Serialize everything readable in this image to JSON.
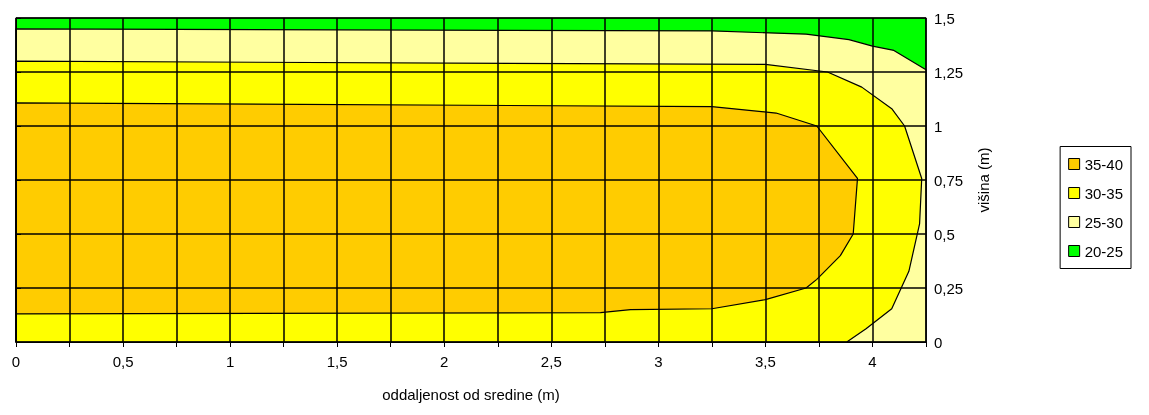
{
  "chart_data": {
    "type": "area",
    "xlabel": "oddaljenost od sredine (m)",
    "ylabel": "višina (m)",
    "xlim": [
      0,
      4.25
    ],
    "ylim": [
      0,
      1.5
    ],
    "xticks": [
      0,
      {
        "value": 0.25,
        "label": null
      },
      {
        "value": 0.5,
        "label": "0,5"
      },
      {
        "value": 0.75,
        "label": null
      },
      1,
      {
        "value": 1.25,
        "label": null
      },
      {
        "value": 1.5,
        "label": "1,5"
      },
      {
        "value": 1.75,
        "label": null
      },
      2,
      {
        "value": 2.25,
        "label": null
      },
      {
        "value": 2.5,
        "label": "2,5"
      },
      {
        "value": 2.75,
        "label": null
      },
      3,
      {
        "value": 3.25,
        "label": null
      },
      {
        "value": 3.5,
        "label": "3,5"
      },
      {
        "value": 3.75,
        "label": null
      },
      4,
      {
        "value": 4.25,
        "label": null
      }
    ],
    "yticks": [
      0,
      {
        "value": 0.25,
        "label": "0,25"
      },
      {
        "value": 0.5,
        "label": "0,5"
      },
      {
        "value": 0.75,
        "label": "0,75"
      },
      1,
      {
        "value": 1.25,
        "label": "1,25"
      },
      {
        "value": 1.5,
        "label": "1,5"
      }
    ],
    "grid": true,
    "legend": "right",
    "series": [
      {
        "name": "35-40",
        "color": "#ffcc00",
        "x": [
          0,
          2.73,
          2.87,
          3.25,
          3.5,
          3.69,
          3.74,
          3.85,
          3.91,
          3.93,
          3.74,
          3.55,
          3.25,
          0
        ],
        "values": [
          0.13,
          0.136,
          0.15,
          0.154,
          0.196,
          0.25,
          0.29,
          0.4,
          0.5,
          0.757,
          1.0,
          1.06,
          1.09,
          1.107
        ]
      },
      {
        "name": "30-35",
        "color": "#ffff00",
        "x": [
          0,
          3.88,
          3.97,
          4.09,
          4.17,
          4.22,
          4.23,
          4.15,
          4.09,
          3.95,
          3.79,
          3.5,
          0
        ],
        "values": [
          0,
          0,
          0.061,
          0.154,
          0.327,
          0.547,
          0.757,
          1.0,
          1.08,
          1.18,
          1.25,
          1.285,
          1.3
        ]
      },
      {
        "name": "25-30",
        "color": "#ffffa0",
        "x": [
          0,
          4.25,
          4.25,
          4.1,
          4.0,
          3.89,
          3.69,
          3.25,
          0
        ],
        "values": [
          0,
          0,
          1.26,
          1.35,
          1.37,
          1.4,
          1.425,
          1.44,
          1.45
        ]
      },
      {
        "name": "20-25",
        "color": "#00ff00",
        "x": [
          0,
          4.25,
          4.25,
          0
        ],
        "values": [
          0,
          0,
          1.5,
          1.5
        ]
      }
    ]
  }
}
